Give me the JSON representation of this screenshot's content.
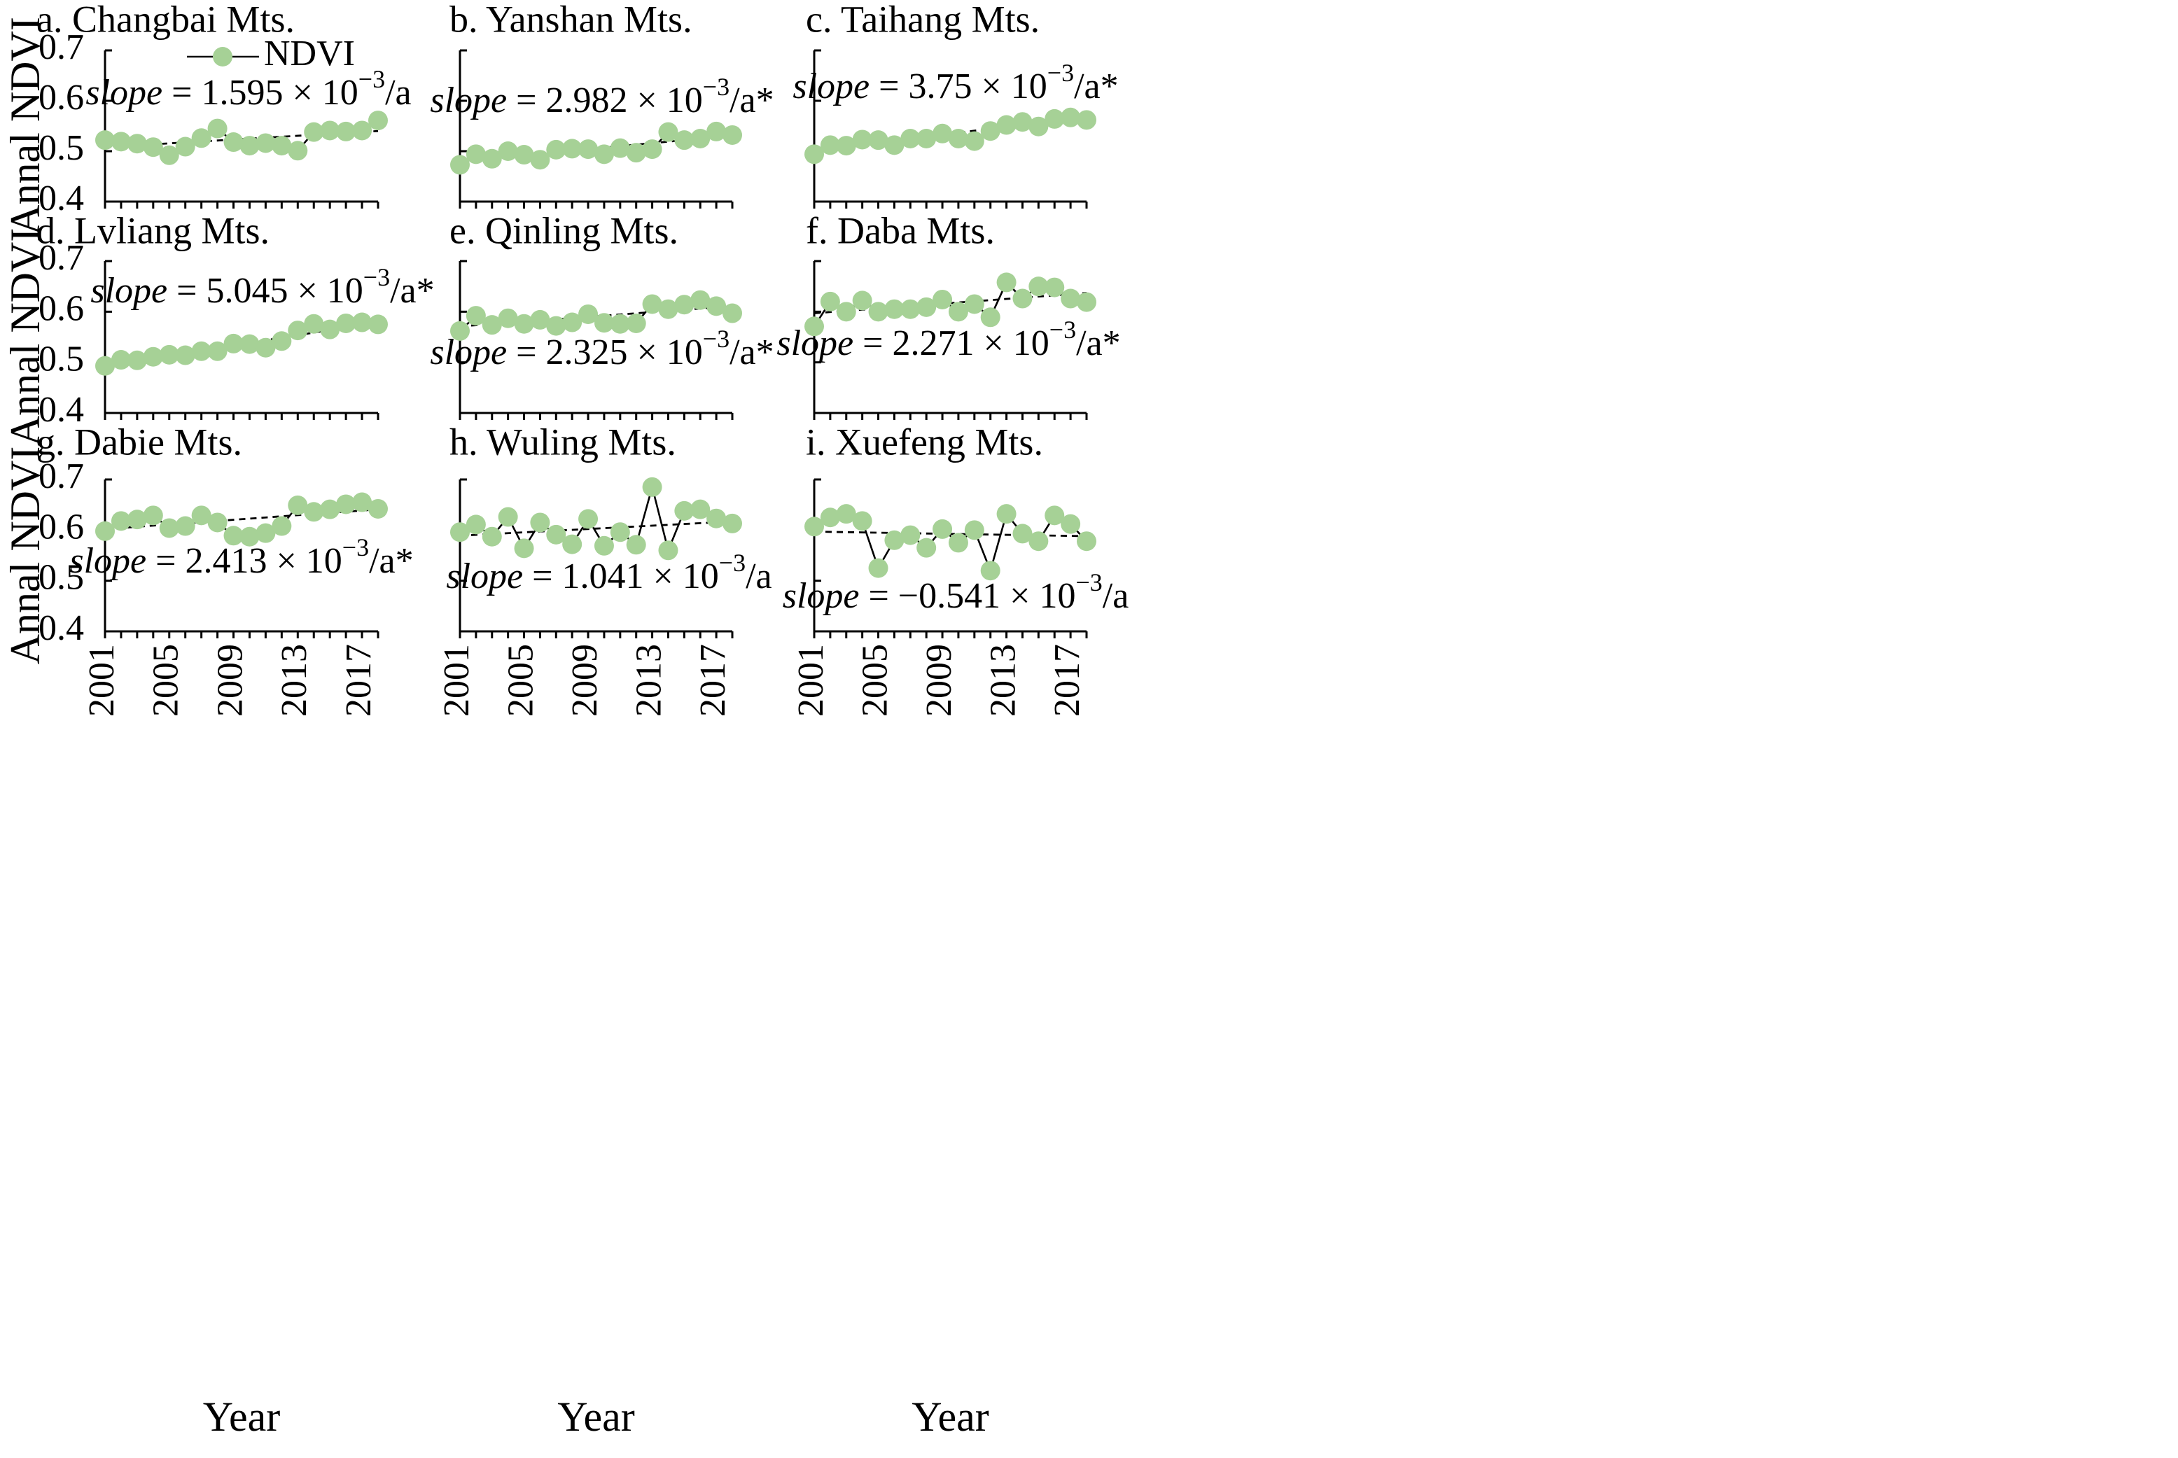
{
  "figure": {
    "legend_label": "NDVI",
    "ylabel": "Annal NDVI",
    "xlabel": "Year",
    "slope_word": "slope",
    "slope_eq": " = ",
    "slope_exp": "−3",
    "colors": {
      "marker": "#a6d196",
      "line": "#000000"
    }
  },
  "chart_data": [
    {
      "type": "line",
      "title": "a. Changbai Mts.",
      "x": [
        2001,
        2002,
        2003,
        2004,
        2005,
        2006,
        2007,
        2008,
        2009,
        2010,
        2011,
        2012,
        2013,
        2014,
        2015,
        2016,
        2017,
        2018
      ],
      "values": [
        0.522,
        0.519,
        0.515,
        0.508,
        0.492,
        0.509,
        0.526,
        0.545,
        0.518,
        0.511,
        0.516,
        0.511,
        0.501,
        0.538,
        0.541,
        0.539,
        0.541,
        0.561
      ],
      "trend": [
        0.508,
        0.54
      ],
      "slope_mantissa": "1.595 × 10",
      "slope_suffix": "/a",
      "ylim": [
        0.4,
        0.7
      ],
      "yticks": [
        "0.4",
        "0.5",
        "0.6",
        "0.7"
      ],
      "xticks": [
        "2001",
        "2005",
        "2009",
        "2013",
        "2017"
      ]
    },
    {
      "type": "line",
      "title": "b. Yanshan Mts.",
      "x": [
        2001,
        2002,
        2003,
        2004,
        2005,
        2006,
        2007,
        2008,
        2009,
        2010,
        2011,
        2012,
        2013,
        2014,
        2015,
        2016,
        2017,
        2018
      ],
      "values": [
        0.473,
        0.494,
        0.485,
        0.5,
        0.493,
        0.483,
        0.503,
        0.505,
        0.504,
        0.494,
        0.506,
        0.497,
        0.504,
        0.538,
        0.522,
        0.525,
        0.539,
        0.532
      ],
      "trend": [
        0.48,
        0.531
      ],
      "slope_mantissa": "2.982 × 10",
      "slope_suffix": "/a*",
      "ylim": [
        0.4,
        0.7
      ],
      "yticks": [],
      "xticks": [
        "2001",
        "2005",
        "2009",
        "2013",
        "2017"
      ]
    },
    {
      "type": "line",
      "title": "c. Taihang Mts.",
      "x": [
        2001,
        2002,
        2003,
        2004,
        2005,
        2006,
        2007,
        2008,
        2009,
        2010,
        2011,
        2012,
        2013,
        2014,
        2015,
        2016,
        2017,
        2018
      ],
      "values": [
        0.494,
        0.512,
        0.511,
        0.523,
        0.522,
        0.512,
        0.525,
        0.525,
        0.535,
        0.525,
        0.52,
        0.54,
        0.552,
        0.558,
        0.549,
        0.564,
        0.567,
        0.562
      ],
      "trend": [
        0.503,
        0.567
      ],
      "slope_mantissa": "3.75 × 10",
      "slope_suffix": "/a*",
      "ylim": [
        0.4,
        0.7
      ],
      "yticks": [],
      "xticks": [
        "2001",
        "2005",
        "2009",
        "2013",
        "2017"
      ]
    },
    {
      "type": "line",
      "title": "d. Lvliang Mts.",
      "x": [
        2001,
        2002,
        2003,
        2004,
        2005,
        2006,
        2007,
        2008,
        2009,
        2010,
        2011,
        2012,
        2013,
        2014,
        2015,
        2016,
        2017,
        2018
      ],
      "values": [
        0.493,
        0.505,
        0.504,
        0.511,
        0.515,
        0.514,
        0.522,
        0.522,
        0.537,
        0.536,
        0.529,
        0.542,
        0.563,
        0.576,
        0.565,
        0.577,
        0.579,
        0.575
      ],
      "trend": [
        0.493,
        0.579
      ],
      "slope_mantissa": "5.045 × 10",
      "slope_suffix": "/a*",
      "ylim": [
        0.4,
        0.7
      ],
      "yticks": [
        "0.4",
        "0.5",
        "0.6",
        "0.7"
      ],
      "xticks": [
        "2001",
        "2005",
        "2009",
        "2013",
        "2017"
      ]
    },
    {
      "type": "line",
      "title": "e. Qinling Mts.",
      "x": [
        2001,
        2002,
        2003,
        2004,
        2005,
        2006,
        2007,
        2008,
        2009,
        2010,
        2011,
        2012,
        2013,
        2014,
        2015,
        2016,
        2017,
        2018
      ],
      "values": [
        0.562,
        0.592,
        0.574,
        0.587,
        0.576,
        0.584,
        0.572,
        0.579,
        0.595,
        0.578,
        0.576,
        0.577,
        0.615,
        0.605,
        0.614,
        0.623,
        0.611,
        0.597
      ],
      "trend": [
        0.571,
        0.611
      ],
      "slope_mantissa": "2.325 × 10",
      "slope_suffix": "/a*",
      "ylim": [
        0.4,
        0.7
      ],
      "yticks": [],
      "xticks": [
        "2001",
        "2005",
        "2009",
        "2013",
        "2017"
      ]
    },
    {
      "type": "line",
      "title": "f. Daba Mts.",
      "x": [
        2001,
        2002,
        2003,
        2004,
        2005,
        2006,
        2007,
        2008,
        2009,
        2010,
        2011,
        2012,
        2013,
        2014,
        2015,
        2016,
        2017,
        2018
      ],
      "values": [
        0.571,
        0.62,
        0.6,
        0.622,
        0.6,
        0.605,
        0.605,
        0.609,
        0.624,
        0.6,
        0.615,
        0.589,
        0.658,
        0.626,
        0.65,
        0.648,
        0.626,
        0.619
      ],
      "trend": [
        0.597,
        0.637
      ],
      "slope_mantissa": "2.271 × 10",
      "slope_suffix": "/a*",
      "ylim": [
        0.4,
        0.7
      ],
      "yticks": [],
      "xticks": [
        "2001",
        "2005",
        "2009",
        "2013",
        "2017"
      ]
    },
    {
      "type": "line",
      "title": "g. Dabie Mts.",
      "x": [
        2001,
        2002,
        2003,
        2004,
        2005,
        2006,
        2007,
        2008,
        2009,
        2010,
        2011,
        2012,
        2013,
        2014,
        2015,
        2016,
        2017,
        2018
      ],
      "values": [
        0.598,
        0.618,
        0.621,
        0.629,
        0.604,
        0.608,
        0.629,
        0.615,
        0.589,
        0.587,
        0.594,
        0.608,
        0.649,
        0.636,
        0.641,
        0.651,
        0.655,
        0.642
      ],
      "trend": [
        0.602,
        0.641
      ],
      "slope_mantissa": "2.413 × 10",
      "slope_suffix": "/a*",
      "ylim": [
        0.4,
        0.7
      ],
      "yticks": [
        "0.4",
        "0.5",
        "0.6",
        "0.7"
      ],
      "xticks": [
        "2001",
        "2005",
        "2009",
        "2013",
        "2017"
      ]
    },
    {
      "type": "line",
      "title": "h. Wuling Mts.",
      "x": [
        2001,
        2002,
        2003,
        2004,
        2005,
        2006,
        2007,
        2008,
        2009,
        2010,
        2011,
        2012,
        2013,
        2014,
        2015,
        2016,
        2017,
        2018
      ],
      "values": [
        0.596,
        0.611,
        0.587,
        0.626,
        0.564,
        0.615,
        0.591,
        0.572,
        0.622,
        0.569,
        0.596,
        0.571,
        0.685,
        0.56,
        0.638,
        0.641,
        0.623,
        0.613
      ],
      "trend": [
        0.589,
        0.617
      ],
      "slope_mantissa": "1.041 × 10",
      "slope_suffix": "/a",
      "ylim": [
        0.4,
        0.7
      ],
      "yticks": [],
      "xticks": [
        "2001",
        "2005",
        "2009",
        "2013",
        "2017"
      ]
    },
    {
      "type": "line",
      "title": "i. Xuefeng Mts.",
      "x": [
        2001,
        2002,
        2003,
        2004,
        2005,
        2006,
        2007,
        2008,
        2009,
        2010,
        2011,
        2012,
        2013,
        2014,
        2015,
        2016,
        2017,
        2018
      ],
      "values": [
        0.607,
        0.625,
        0.632,
        0.618,
        0.525,
        0.58,
        0.59,
        0.565,
        0.602,
        0.575,
        0.6,
        0.52,
        0.632,
        0.593,
        0.578,
        0.629,
        0.612,
        0.578
      ],
      "trend": [
        0.597,
        0.588
      ],
      "slope_mantissa": "−0.541 × 10",
      "slope_suffix": "/a",
      "ylim": [
        0.4,
        0.7
      ],
      "yticks": [],
      "xticks": [
        "2001",
        "2005",
        "2009",
        "2013",
        "2017"
      ]
    }
  ]
}
